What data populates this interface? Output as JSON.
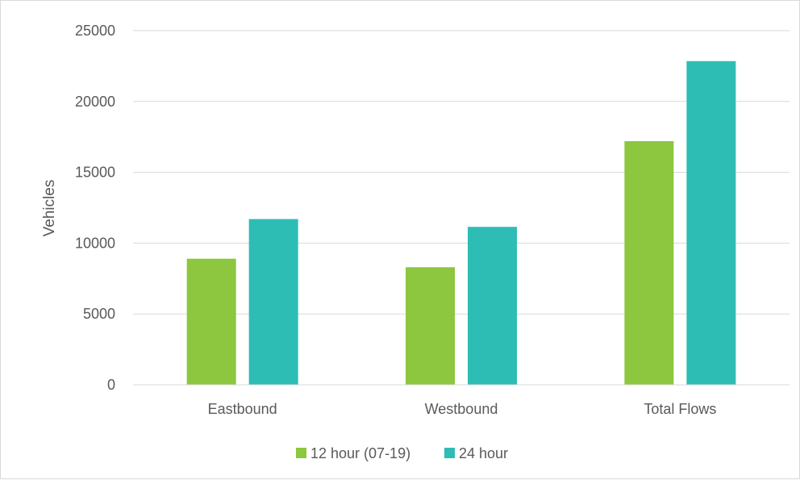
{
  "chart_data": {
    "type": "bar",
    "categories": [
      "Eastbound",
      "Westbound",
      "Total Flows"
    ],
    "series": [
      {
        "name": "12 hour (07-19)",
        "values": [
          8900,
          8300,
          17200
        ],
        "color": "#8dc63f"
      },
      {
        "name": "24 hour",
        "values": [
          11700,
          11150,
          22850
        ],
        "color": "#2ebdb5"
      }
    ],
    "title": "",
    "xlabel": "",
    "ylabel": "Vehicles",
    "ylim": [
      0,
      25000
    ],
    "yticks": [
      "0",
      "5000",
      "10000",
      "15000",
      "20000",
      "25000"
    ],
    "grid": true,
    "legend_position": "bottom"
  }
}
